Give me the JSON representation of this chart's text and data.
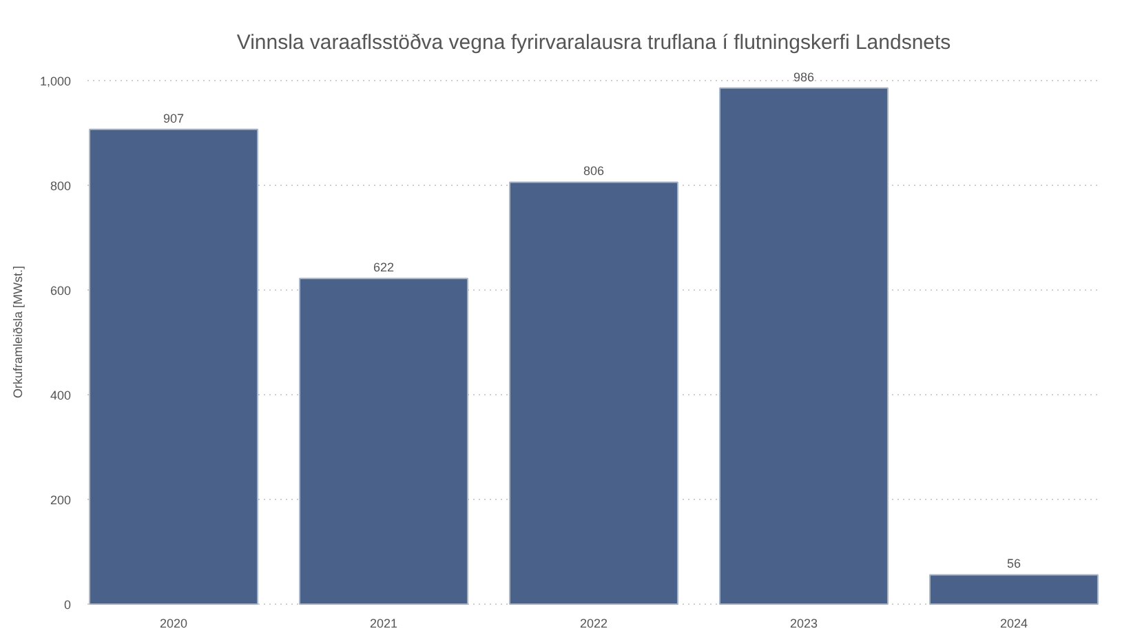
{
  "chart_data": {
    "type": "bar",
    "title": "Vinnsla varaaflsstöðva vegna fyrirvaralausra truflana í flutningskerfi Landsnets",
    "ylabel": "Orkuframleiðsla [MWst.]",
    "categories": [
      "2020",
      "2021",
      "2022",
      "2023",
      "2024"
    ],
    "values": [
      907,
      622,
      806,
      986,
      56
    ],
    "color": "#4a6289",
    "ylim": [
      0,
      1000
    ],
    "yticks": [
      0,
      200,
      400,
      600,
      800,
      {
        "value": 1000,
        "label": "1,000"
      }
    ],
    "grid": "y",
    "data_labels": true
  }
}
